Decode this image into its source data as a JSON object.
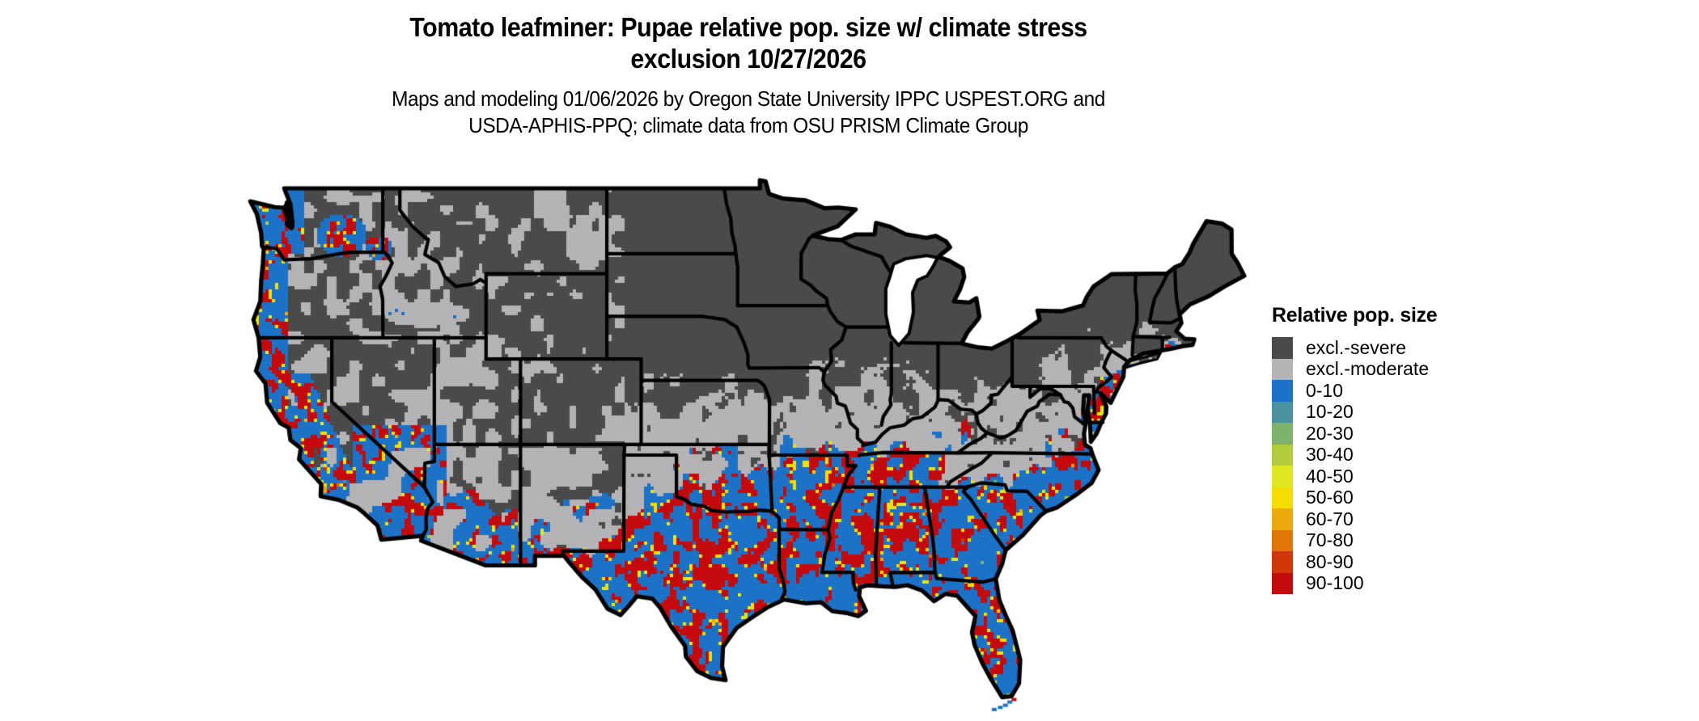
{
  "header": {
    "title_line1": "Tomato leafminer: Pupae relative pop. size w/ climate stress",
    "title_line2": "exclusion 10/27/2026",
    "subtitle_line1": "Maps and modeling 01/06/2026 by Oregon State University IPPC USPEST.ORG and",
    "subtitle_line2": "USDA-APHIS-PPQ; climate data from OSU PRISM Climate Group"
  },
  "legend": {
    "title": "Relative pop. size",
    "items": [
      {
        "label": "excl.-severe",
        "color": "#4a4a4a"
      },
      {
        "label": "excl.-moderate",
        "color": "#b4b4b6"
      },
      {
        "label": "0-10",
        "color": "#1c72c6"
      },
      {
        "label": "10-20",
        "color": "#4a92a0"
      },
      {
        "label": "20-30",
        "color": "#7db26b"
      },
      {
        "label": "30-40",
        "color": "#b3cc3d"
      },
      {
        "label": "40-50",
        "color": "#e0e821"
      },
      {
        "label": "50-60",
        "color": "#f5dd00"
      },
      {
        "label": "60-70",
        "color": "#eba90b"
      },
      {
        "label": "70-80",
        "color": "#e07607"
      },
      {
        "label": "80-90",
        "color": "#d33709"
      },
      {
        "label": "90-100",
        "color": "#c40a0d"
      }
    ]
  },
  "map": {
    "region": "Continental United States",
    "background": "#ffffff",
    "water_color": "#ffffff",
    "border_color": "#000000"
  }
}
